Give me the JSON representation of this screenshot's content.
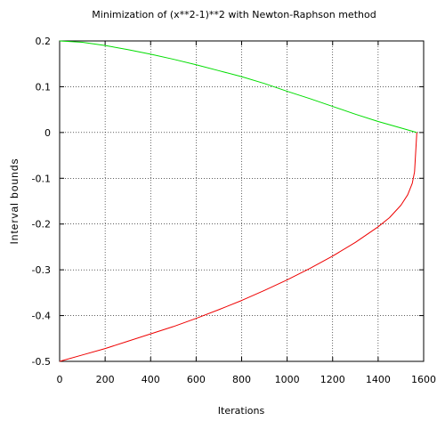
{
  "chart_data": {
    "type": "line",
    "title": "Minimization of (x**2-1)**2 with Newton-Raphson method",
    "xlabel": "Iterations",
    "ylabel": "Interval bounds",
    "xlim": [
      0,
      1600
    ],
    "ylim": [
      -0.5,
      0.2
    ],
    "xticks": [
      "0",
      "200",
      "400",
      "600",
      "800",
      "1000",
      "1200",
      "1400",
      "1600"
    ],
    "yticks": [
      "0.2",
      "0.1",
      "0",
      "-0.1",
      "-0.2",
      "-0.3",
      "-0.4",
      "-0.5"
    ],
    "grid": true,
    "legend": "none",
    "series": [
      {
        "color": "#00dd00",
        "x": [
          0,
          100,
          200,
          300,
          400,
          500,
          600,
          700,
          800,
          900,
          1000,
          1100,
          1200,
          1300,
          1400,
          1500,
          1570
        ],
        "y": [
          0.2,
          0.197,
          0.19,
          0.181,
          0.171,
          0.16,
          0.148,
          0.135,
          0.122,
          0.107,
          0.09,
          0.074,
          0.057,
          0.04,
          0.024,
          0.01,
          0.0
        ]
      },
      {
        "color": "#ee0000",
        "x": [
          0,
          100,
          200,
          300,
          400,
          500,
          600,
          700,
          800,
          900,
          1000,
          1100,
          1200,
          1300,
          1400,
          1450,
          1500,
          1530,
          1550,
          1560,
          1570
        ],
        "y": [
          -0.5,
          -0.486,
          -0.472,
          -0.456,
          -0.44,
          -0.424,
          -0.406,
          -0.387,
          -0.367,
          -0.345,
          -0.322,
          -0.297,
          -0.27,
          -0.24,
          -0.206,
          -0.186,
          -0.159,
          -0.136,
          -0.111,
          -0.086,
          0.0
        ]
      }
    ]
  }
}
